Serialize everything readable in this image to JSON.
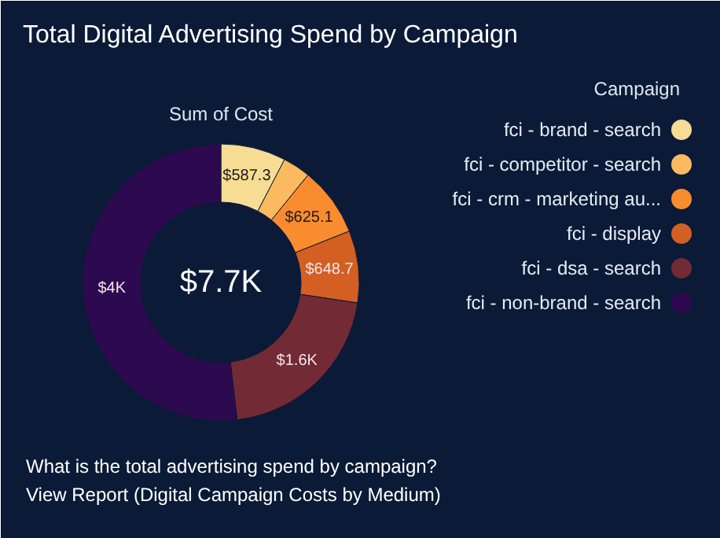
{
  "chart_data": {
    "type": "donut",
    "title": "Total Digital Advertising Spend by Campaign",
    "subtitle": "Sum of Cost",
    "legend_title": "Campaign",
    "legend": "right",
    "categories": [
      "fci - brand - search",
      "fci - competitor - search",
      "fci - crm - marketing au...",
      "fci - display",
      "fci - dsa - search",
      "fci - non-brand - search"
    ],
    "values": [
      587.3,
      250,
      625.1,
      648.7,
      1600,
      4000
    ],
    "colors": [
      "#f7dc94",
      "#fbba5f",
      "#f98c2e",
      "#d35f22",
      "#722a35",
      "#2d0a4f"
    ],
    "value_labels": [
      "$587.3",
      null,
      "$625.1",
      "$648.7",
      "$1.6K",
      "$4K"
    ],
    "annotations": [
      "$7.7K",
      "What is the total advertising spend by campaign?",
      "View Report (Digital Campaign Costs by Medium)"
    ]
  }
}
